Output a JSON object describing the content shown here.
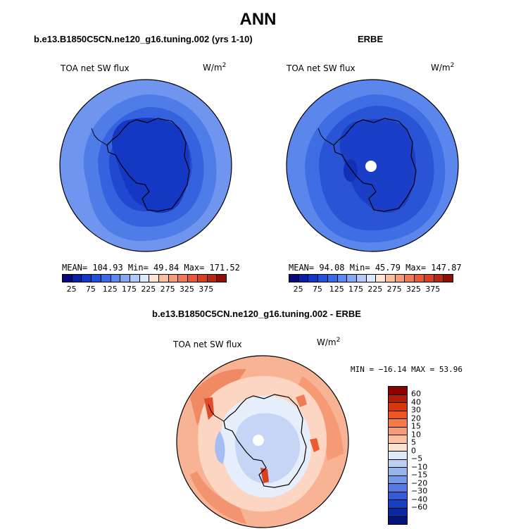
{
  "title": "ANN",
  "panels": [
    {
      "subtitle": "b.e13.B1850C5CN.ne120_g16.tuning.002 (yrs 1-10)",
      "field": "TOA net SW flux",
      "units": "W/m",
      "units_sup": "2",
      "stats": "MEAN= 104.93  Min=  49.84  Max= 171.52"
    },
    {
      "subtitle": "ERBE",
      "field": "TOA net SW flux",
      "units": "W/m",
      "units_sup": "2",
      "stats": "MEAN=  94.08  Min=  45.79  Max= 147.87"
    },
    {
      "subtitle": "b.e13.B1850C5CN.ne120_g16.tuning.002 - ERBE",
      "field": "TOA net SW flux",
      "units": "W/m",
      "units_sup": "2",
      "stats": "MIN = −16.14 MAX =  53.96"
    }
  ],
  "colorbar_main": {
    "colors": [
      "#08087a",
      "#0a1fa8",
      "#1436c8",
      "#2150dc",
      "#3a6ae6",
      "#5a88ee",
      "#83a8f2",
      "#b1c9f6",
      "#dde8fa",
      "#fde4d4",
      "#f9c0a0",
      "#f59c78",
      "#f07a55",
      "#e85a35",
      "#d8401e",
      "#b82810",
      "#8c1005"
    ],
    "ticks": [
      "25",
      "75",
      "125",
      "175",
      "225",
      "275",
      "325",
      "375"
    ]
  },
  "colorbar_diff": {
    "colors": [
      "#8b0000",
      "#b01c08",
      "#d8360c",
      "#ec5420",
      "#f47a48",
      "#f79c74",
      "#fac0a0",
      "#fde2d2",
      "#dde8f8",
      "#bcd0f4",
      "#98b6ee",
      "#7698e8",
      "#557ae2",
      "#345cd8",
      "#1a40c0",
      "#0c28a0",
      "#041478"
    ],
    "ticks": [
      "60",
      "40",
      "30",
      "20",
      "15",
      "10",
      "5",
      "0",
      "−5",
      "−10",
      "−15",
      "−20",
      "−30",
      "−40",
      "−60"
    ]
  }
}
